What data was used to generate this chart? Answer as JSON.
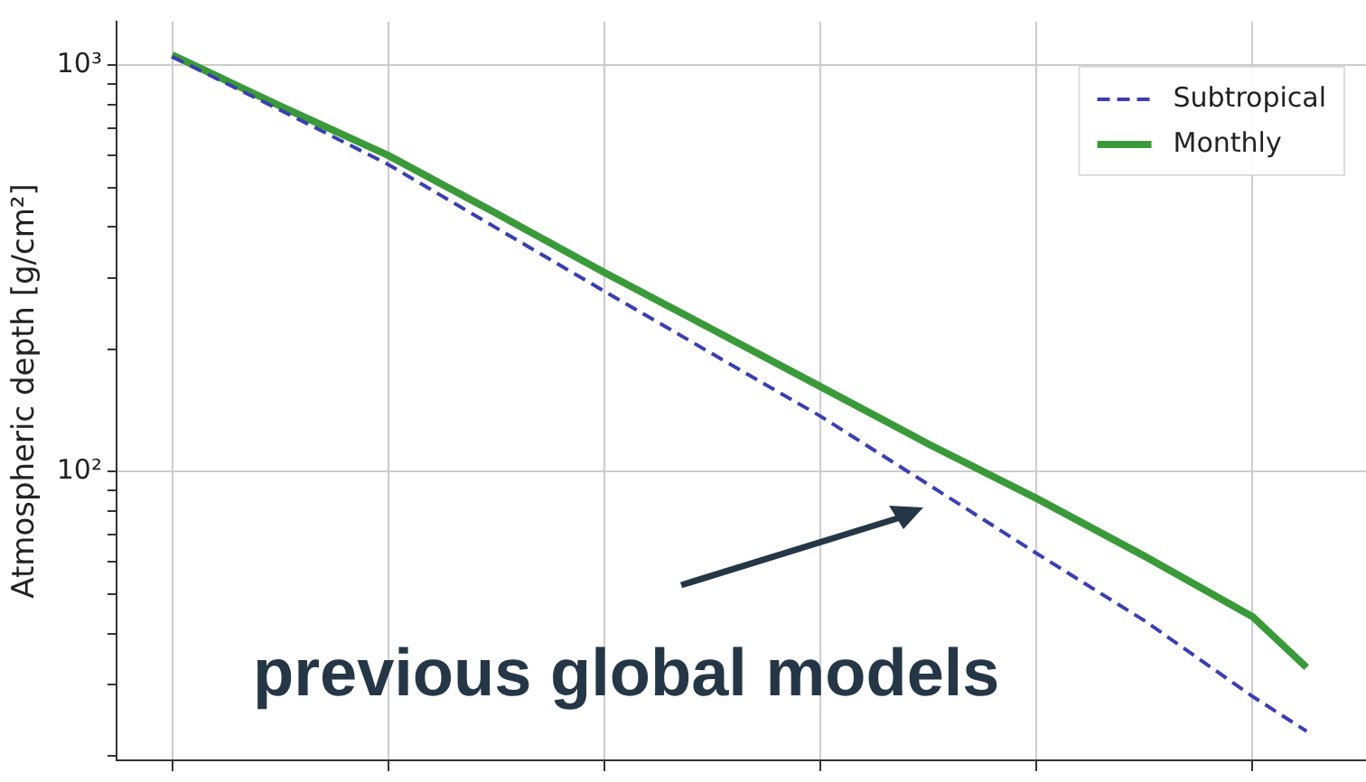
{
  "chart_data": {
    "type": "line",
    "ylabel": "Atmospheric depth [g/cm²]",
    "log": "y",
    "grid": true,
    "legend": "top right",
    "tick_labels": "y",
    "categories": [
      null,
      null,
      null,
      null,
      null,
      null,
      null,
      null,
      null,
      null,
      null,
      null,
      null,
      null,
      null,
      null,
      null,
      null,
      null,
      null,
      null,
      null
    ],
    "ylim": [
      19.5,
      1280
    ],
    "yticks": [
      {
        "value": 20,
        "label": null
      },
      {
        "value": 30,
        "label": null
      },
      {
        "value": 40,
        "label": null
      },
      {
        "value": 50,
        "label": null
      },
      {
        "value": 60,
        "label": null
      },
      {
        "value": 70,
        "label": null
      },
      {
        "value": 80,
        "label": null
      },
      {
        "value": 90,
        "label": null
      },
      {
        "value": 100,
        "label": "10²"
      },
      {
        "value": 200,
        "label": null
      },
      {
        "value": 300,
        "label": null
      },
      {
        "value": 400,
        "label": null
      },
      {
        "value": 500,
        "label": null
      },
      {
        "value": 600,
        "label": null
      },
      {
        "value": 700,
        "label": null
      },
      {
        "value": 800,
        "label": null
      },
      {
        "value": 900,
        "label": null
      },
      {
        "value": 1000,
        "label": "10³"
      }
    ],
    "series": [
      {
        "name": "Subtropical",
        "color": "#3b3fb0",
        "line_style": "dashed",
        "values": [
          1050,
          null,
          776,
          null,
          570,
          null,
          398,
          null,
          278,
          null,
          195,
          null,
          137,
          null,
          93,
          null,
          63,
          null,
          43,
          null,
          28,
          23
        ]
      },
      {
        "name": "Monthly",
        "color": "#3a9a3a",
        "line_style": "solid",
        "values": [
          1060,
          null,
          794,
          null,
          600,
          null,
          432,
          null,
          309,
          null,
          224,
          null,
          162,
          null,
          117,
          null,
          86,
          null,
          62,
          null,
          44,
          33
        ]
      }
    ],
    "annotations": [
      "previous global models"
    ]
  }
}
